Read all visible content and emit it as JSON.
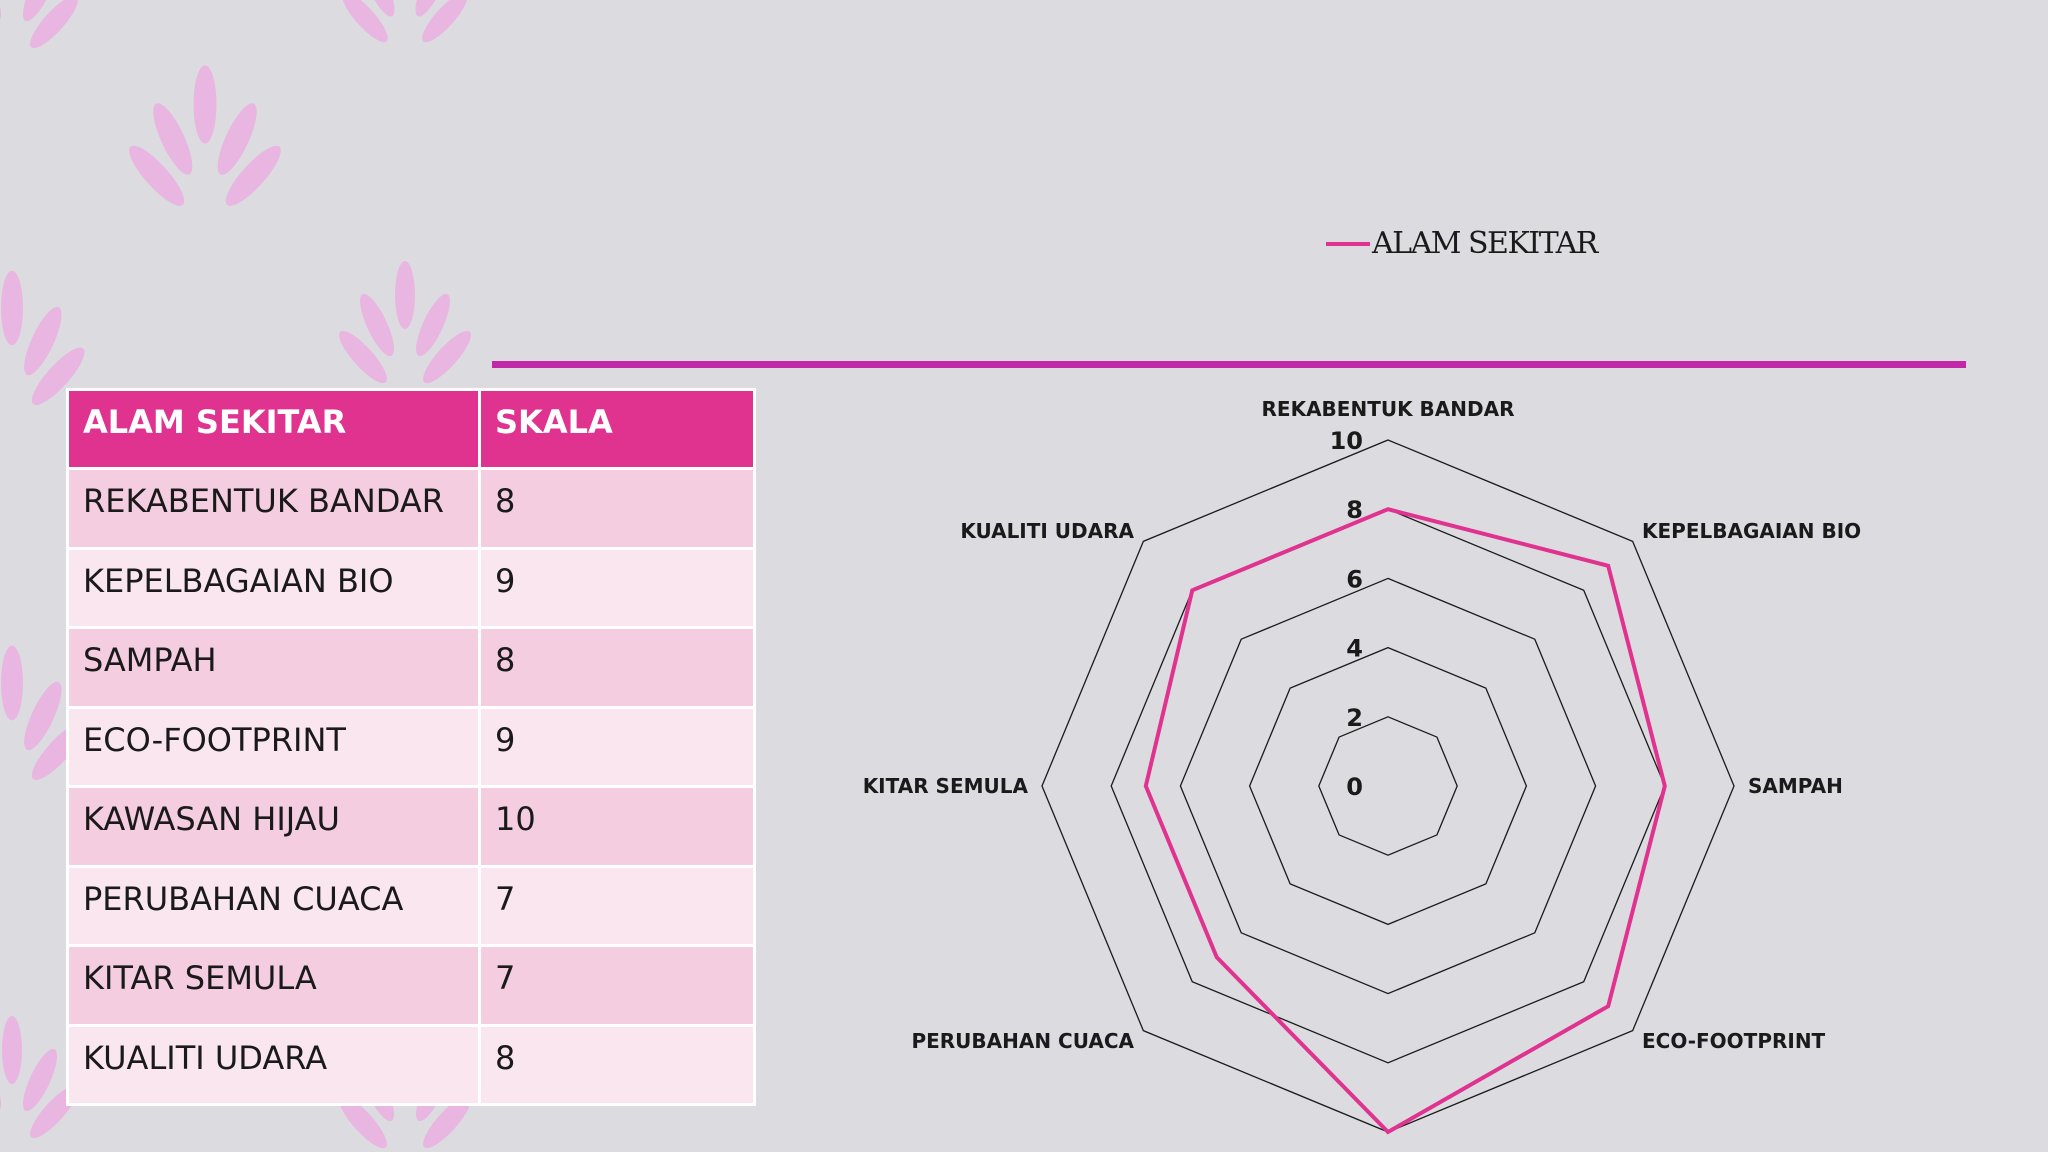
{
  "colors": {
    "background": "#dcdce0",
    "accent": "#e0338f",
    "accent_line": "#c02aa8",
    "row_dark": "#f4cde0",
    "row_light": "#f9e6ef",
    "decoration": "#e9b4e2"
  },
  "table": {
    "headers": [
      "ALAM SEKITAR",
      "SKALA"
    ],
    "rows": [
      [
        "REKABENTUK BANDAR",
        "8"
      ],
      [
        "KEPELBAGAIAN BIO",
        "9"
      ],
      [
        "SAMPAH",
        "8"
      ],
      [
        "ECO-FOOTPRINT",
        "9"
      ],
      [
        "KAWASAN HIJAU",
        "10"
      ],
      [
        "PERUBAHAN CUACA",
        "7"
      ],
      [
        "KITAR SEMULA",
        "7"
      ],
      [
        "KUALITI UDARA",
        "8"
      ]
    ]
  },
  "chart_data": {
    "type": "radar",
    "categories": [
      "REKABENTUK BANDAR",
      "KEPELBAGAIAN BIO",
      "SAMPAH",
      "ECO-FOOTPRINT",
      "KAWASAN HIJAU",
      "PERUBAHAN CUACA",
      "KITAR SEMULA",
      "KUALITI UDARA"
    ],
    "category_labels": [
      "REKABENTUK BANDAR",
      "KEPELBAGAIAN BIO",
      "SAMPAH",
      "ECO-FOOTPRINT",
      "",
      "PERUBAHAN CUACA",
      "KITAR SEMULA",
      "KUALITI UDARA"
    ],
    "series": [
      {
        "name": "ALAM SEKITAR",
        "values": [
          8,
          9,
          8,
          9,
          10,
          7,
          7,
          8
        ],
        "color": "#e0338f"
      }
    ],
    "ticks": [
      0,
      2,
      4,
      6,
      8,
      10
    ],
    "range": [
      0,
      10
    ],
    "legend_position": "top-right",
    "grid": true
  }
}
